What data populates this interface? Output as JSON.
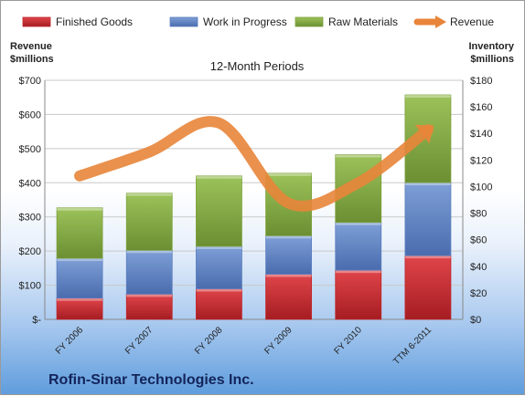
{
  "company": "Rofin-Sinar Technologies Inc.",
  "chart_data": {
    "type": "bar",
    "stacked": true,
    "title": "12-Month Periods",
    "ylabel_left": "Revenue\n$millions",
    "ylabel_right": "Inventory\n$millions",
    "categories": [
      "FY 2006",
      "FY 2007",
      "FY 2008",
      "FY 2009",
      "FY 2010",
      "TTM 6-2011"
    ],
    "left_axis": {
      "min": 0,
      "max": 700,
      "step": 100,
      "tick_labels": [
        "$-",
        "$100",
        "$200",
        "$300",
        "$400",
        "$500",
        "$600",
        "$700"
      ]
    },
    "right_axis": {
      "min": 0,
      "max": 180,
      "step": 20,
      "tick_labels": [
        "$0",
        "$20",
        "$40",
        "$60",
        "$80",
        "$100",
        "$120",
        "$140",
        "$160",
        "$180"
      ]
    },
    "series": [
      {
        "name": "Finished Goods",
        "type": "bar",
        "axis": "right",
        "color": "#c0262b",
        "values": [
          16,
          19,
          23,
          34,
          37,
          48
        ]
      },
      {
        "name": "Work in Progress",
        "type": "bar",
        "axis": "right",
        "color": "#5b7fc0",
        "values": [
          30,
          33,
          32,
          29,
          36,
          55
        ]
      },
      {
        "name": "Raw Materials",
        "type": "bar",
        "axis": "right",
        "color": "#7da13c",
        "values": [
          38,
          43,
          53,
          47,
          51,
          66
        ]
      },
      {
        "name": "Revenue",
        "type": "line",
        "axis": "left",
        "color": "#e8853a",
        "values": [
          420,
          490,
          575,
          340,
          400,
          555
        ]
      }
    ],
    "legend_position": "top",
    "grid": true
  }
}
